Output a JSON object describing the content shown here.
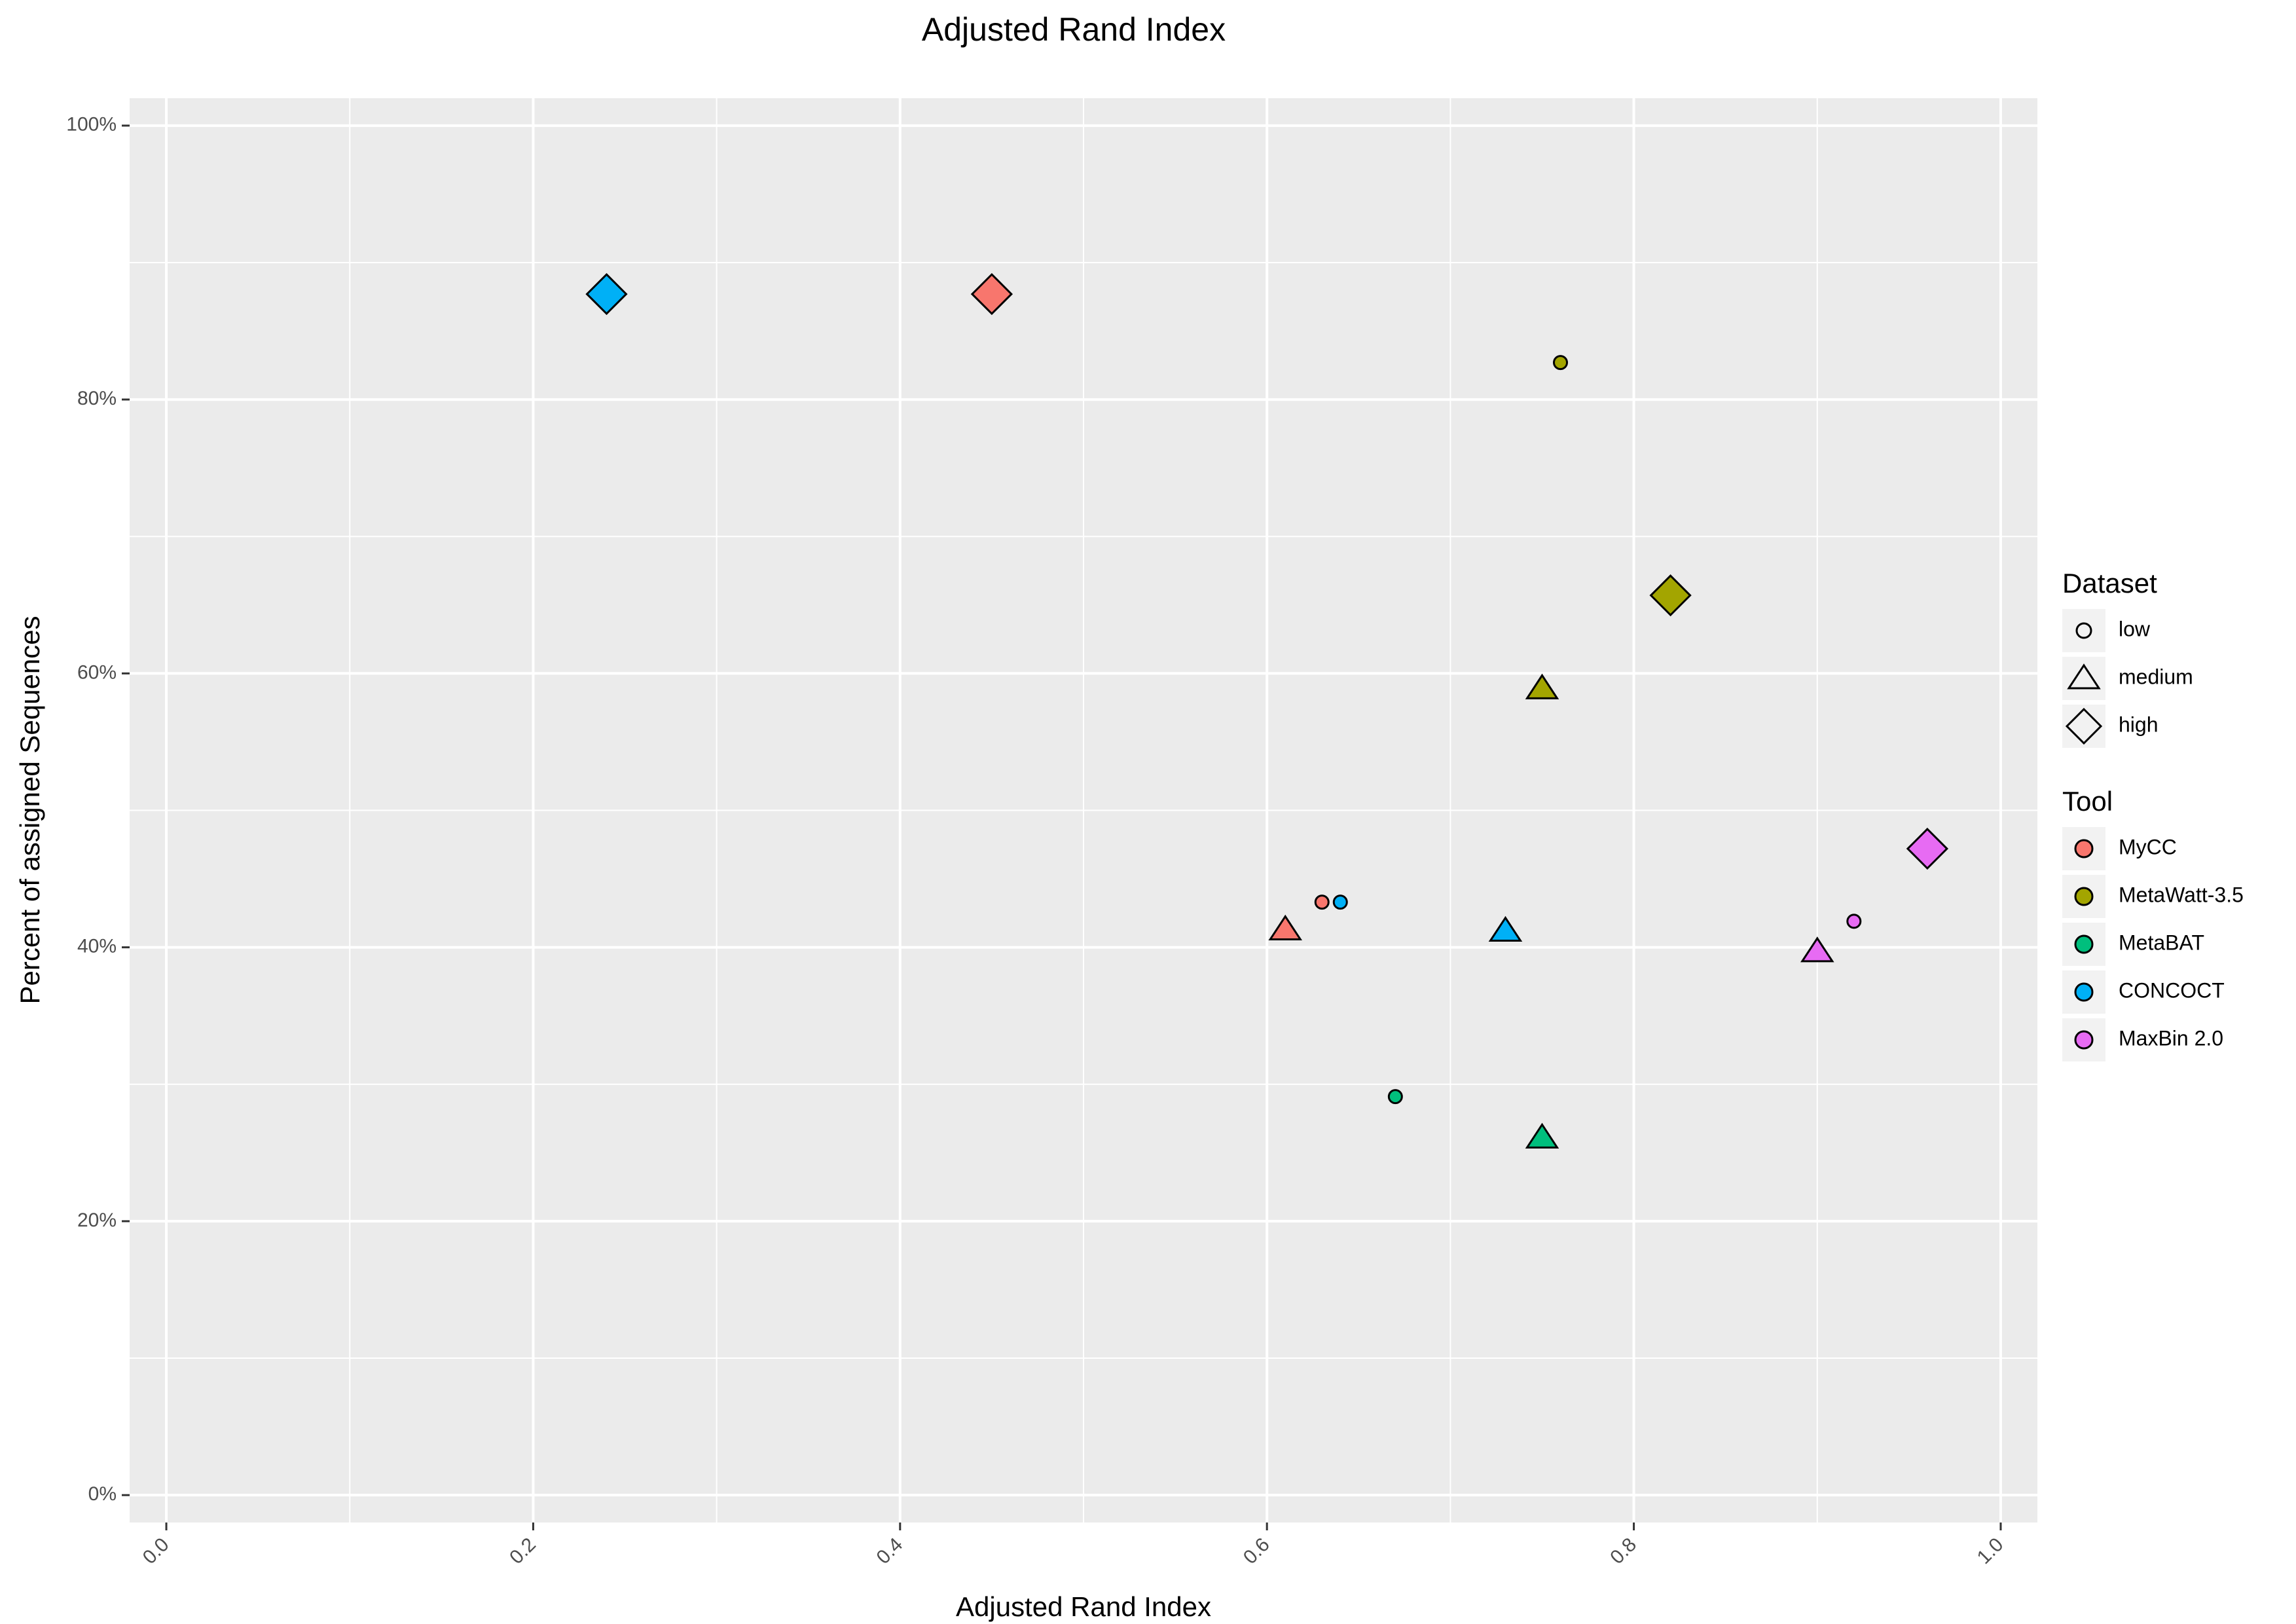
{
  "chart_data": {
    "type": "scatter",
    "title": "Adjusted Rand Index",
    "xlabel": "Adjusted Rand Index",
    "ylabel": "Percent of assigned Sequences",
    "xlim": [
      -0.02,
      1.02
    ],
    "ylim": [
      -0.02,
      1.02
    ],
    "x_ticks": [
      0.0,
      0.2,
      0.4,
      0.6,
      0.8,
      1.0
    ],
    "x_tick_labels": [
      "0.0",
      "0.2",
      "0.4",
      "0.6",
      "0.8",
      "1.0"
    ],
    "y_ticks": [
      0,
      0.2,
      0.4,
      0.6,
      0.8,
      1.0
    ],
    "y_tick_labels": [
      "0%",
      "20%",
      "40%",
      "60%",
      "80%",
      "100%"
    ],
    "grid": true,
    "background": "#ebebeb",
    "legend_placement": "right",
    "legend_shape": {
      "title": "Dataset",
      "entries": [
        {
          "name": "low",
          "shape": "circle"
        },
        {
          "name": "medium",
          "shape": "triangle"
        },
        {
          "name": "high",
          "shape": "diamond"
        }
      ]
    },
    "legend_color": {
      "title": "Tool",
      "entries": [
        {
          "name": "MyCC",
          "color": "#f8766d"
        },
        {
          "name": "MetaWatt-3.5",
          "color": "#a3a500"
        },
        {
          "name": "MetaBAT",
          "color": "#00bf7d"
        },
        {
          "name": "CONCOCT",
          "color": "#00b0f6"
        },
        {
          "name": "MaxBin 2.0",
          "color": "#e76bf3"
        }
      ]
    },
    "points": [
      {
        "tool": "MyCC",
        "dataset": "low",
        "x": 0.63,
        "y": 0.433
      },
      {
        "tool": "MyCC",
        "dataset": "medium",
        "x": 0.61,
        "y": 0.413
      },
      {
        "tool": "MyCC",
        "dataset": "high",
        "x": 0.45,
        "y": 0.877
      },
      {
        "tool": "MetaWatt-3.5",
        "dataset": "low",
        "x": 0.76,
        "y": 0.827
      },
      {
        "tool": "MetaWatt-3.5",
        "dataset": "medium",
        "x": 0.75,
        "y": 0.589
      },
      {
        "tool": "MetaWatt-3.5",
        "dataset": "high",
        "x": 0.82,
        "y": 0.657
      },
      {
        "tool": "MetaBAT",
        "dataset": "low",
        "x": 0.67,
        "y": 0.291
      },
      {
        "tool": "MetaBAT",
        "dataset": "medium",
        "x": 0.75,
        "y": 0.261
      },
      {
        "tool": "CONCOCT",
        "dataset": "low",
        "x": 0.64,
        "y": 0.433
      },
      {
        "tool": "CONCOCT",
        "dataset": "medium",
        "x": 0.73,
        "y": 0.412
      },
      {
        "tool": "CONCOCT",
        "dataset": "high",
        "x": 0.24,
        "y": 0.877
      },
      {
        "tool": "MaxBin 2.0",
        "dataset": "low",
        "x": 0.92,
        "y": 0.419
      },
      {
        "tool": "MaxBin 2.0",
        "dataset": "medium",
        "x": 0.9,
        "y": 0.397
      },
      {
        "tool": "MaxBin 2.0",
        "dataset": "high",
        "x": 0.96,
        "y": 0.472
      }
    ]
  }
}
